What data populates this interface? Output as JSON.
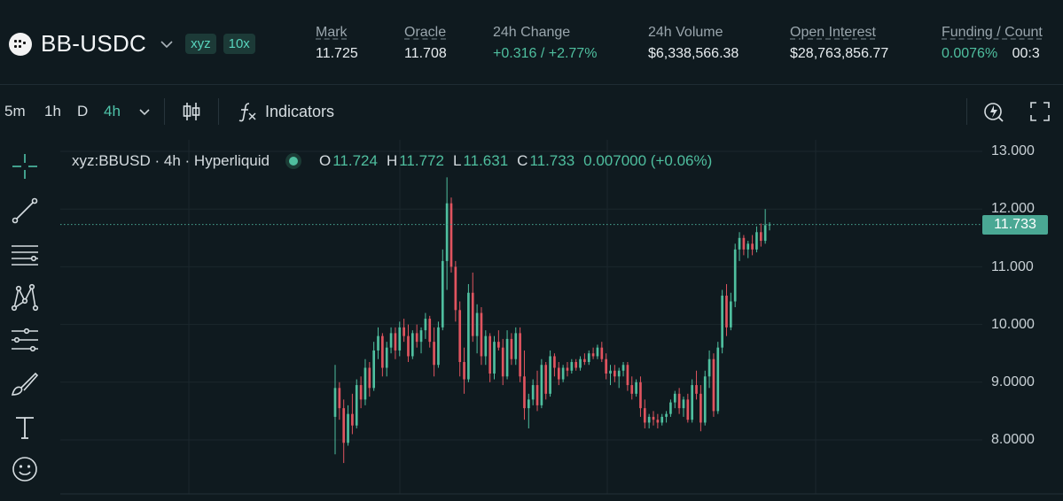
{
  "header": {
    "pair": "BB-USDC",
    "badges": [
      "xyz",
      "10x"
    ],
    "stats": [
      {
        "label": "Mark",
        "value": "11.725",
        "underline": true,
        "green": false
      },
      {
        "label": "Oracle",
        "value": "11.708",
        "underline": true,
        "green": false
      },
      {
        "label": "24h Change",
        "value": "+0.316 / +2.77%",
        "underline": false,
        "green": true
      },
      {
        "label": "24h Volume",
        "value": "$6,338,566.38",
        "underline": false,
        "green": false
      },
      {
        "label": "Open Interest",
        "value": "$28,763,856.77",
        "underline": true,
        "green": false
      },
      {
        "label": "Funding / Count",
        "value": "0.0076%",
        "value2": "00:3",
        "underline": true,
        "green": true
      }
    ]
  },
  "toolbar": {
    "timeframes": [
      "5m",
      "1h",
      "D",
      "4h"
    ],
    "active_timeframe": "4h",
    "indicators_label": "Indicators"
  },
  "chart": {
    "legend": {
      "symbol": "xyz:BBUSD · 4h · Hyperliquid",
      "o_label": "O",
      "o": "11.724",
      "h_label": "H",
      "h": "11.772",
      "l_label": "L",
      "l": "11.631",
      "c_label": "C",
      "c": "11.733",
      "change": "0.007000 (+0.06%)"
    },
    "current_price": "11.733",
    "y_axis_labels": [
      "13.000",
      "12.000",
      "11.000",
      "10.000",
      "9.0000",
      "8.0000"
    ],
    "colors": {
      "up": "#4fbf9f",
      "down": "#e0545f",
      "bg": "#0f1a1f",
      "grid": "#1b272d"
    }
  },
  "chart_data": {
    "type": "candlestick",
    "ylim": [
      7.0,
      13.3
    ],
    "y_ticks": [
      13,
      12,
      11,
      10,
      9,
      8
    ],
    "last": 11.733,
    "candles": [
      [
        8.4,
        9.3,
        7.75,
        8.9
      ],
      [
        8.9,
        9.0,
        8.35,
        8.55
      ],
      [
        8.55,
        8.7,
        7.6,
        7.95
      ],
      [
        7.95,
        8.6,
        7.9,
        8.45
      ],
      [
        8.45,
        8.8,
        8.1,
        8.25
      ],
      [
        8.25,
        9.05,
        8.2,
        8.95
      ],
      [
        8.95,
        9.1,
        8.55,
        8.7
      ],
      [
        8.7,
        9.4,
        8.6,
        9.25
      ],
      [
        9.25,
        9.35,
        8.75,
        8.9
      ],
      [
        8.9,
        9.7,
        8.85,
        9.55
      ],
      [
        9.55,
        9.95,
        9.4,
        9.8
      ],
      [
        9.8,
        9.85,
        9.1,
        9.25
      ],
      [
        9.25,
        9.7,
        9.1,
        9.6
      ],
      [
        9.6,
        9.95,
        9.5,
        9.85
      ],
      [
        9.85,
        9.95,
        9.4,
        9.55
      ],
      [
        9.55,
        10.05,
        9.45,
        9.95
      ],
      [
        9.95,
        10.1,
        9.7,
        9.8
      ],
      [
        9.8,
        10.0,
        9.35,
        9.45
      ],
      [
        9.45,
        9.9,
        9.4,
        9.85
      ],
      [
        9.85,
        10.0,
        9.6,
        9.7
      ],
      [
        9.7,
        9.95,
        9.5,
        9.9
      ],
      [
        9.9,
        10.2,
        9.75,
        10.1
      ],
      [
        10.1,
        10.15,
        9.6,
        9.7
      ],
      [
        9.7,
        9.95,
        9.1,
        9.3
      ],
      [
        9.3,
        10.05,
        9.25,
        9.95
      ],
      [
        9.95,
        11.3,
        9.9,
        11.1
      ],
      [
        11.1,
        12.55,
        10.6,
        12.1
      ],
      [
        12.1,
        12.2,
        10.9,
        11.0
      ],
      [
        11.0,
        11.1,
        10.05,
        10.25
      ],
      [
        10.25,
        10.4,
        9.1,
        9.35
      ],
      [
        9.35,
        9.6,
        8.8,
        9.05
      ],
      [
        9.05,
        10.7,
        9.0,
        10.55
      ],
      [
        10.55,
        10.9,
        9.7,
        9.8
      ],
      [
        9.8,
        10.35,
        9.5,
        10.2
      ],
      [
        10.2,
        10.3,
        9.3,
        9.45
      ],
      [
        9.45,
        9.9,
        9.3,
        9.8
      ],
      [
        9.8,
        9.85,
        9.0,
        9.15
      ],
      [
        9.15,
        9.8,
        9.05,
        9.7
      ],
      [
        9.7,
        9.9,
        9.55,
        9.6
      ],
      [
        9.6,
        9.75,
        8.95,
        9.1
      ],
      [
        9.1,
        9.9,
        9.05,
        9.75
      ],
      [
        9.75,
        9.85,
        9.3,
        9.4
      ],
      [
        9.4,
        9.95,
        9.3,
        9.85
      ],
      [
        9.85,
        9.95,
        9.0,
        9.1
      ],
      [
        9.1,
        9.55,
        8.35,
        8.55
      ],
      [
        8.55,
        8.8,
        8.2,
        8.7
      ],
      [
        8.7,
        9.05,
        8.6,
        8.95
      ],
      [
        8.95,
        9.2,
        8.5,
        8.6
      ],
      [
        8.6,
        9.4,
        8.55,
        9.3
      ],
      [
        9.3,
        9.35,
        8.7,
        8.8
      ],
      [
        8.8,
        9.55,
        8.75,
        9.45
      ],
      [
        9.45,
        9.5,
        9.1,
        9.25
      ],
      [
        9.25,
        9.35,
        8.95,
        9.05
      ],
      [
        9.05,
        9.3,
        9.0,
        9.25
      ],
      [
        9.25,
        9.35,
        9.1,
        9.2
      ],
      [
        9.2,
        9.4,
        9.15,
        9.35
      ],
      [
        9.35,
        9.4,
        9.2,
        9.25
      ],
      [
        9.25,
        9.45,
        9.2,
        9.4
      ],
      [
        9.4,
        9.5,
        9.3,
        9.35
      ],
      [
        9.35,
        9.55,
        9.3,
        9.5
      ],
      [
        9.5,
        9.6,
        9.4,
        9.45
      ],
      [
        9.45,
        9.65,
        9.4,
        9.6
      ],
      [
        9.6,
        9.7,
        9.35,
        9.4
      ],
      [
        9.4,
        9.5,
        9.05,
        9.15
      ],
      [
        9.15,
        9.3,
        8.95,
        9.2
      ],
      [
        9.2,
        9.3,
        9.0,
        9.1
      ],
      [
        9.1,
        9.25,
        8.9,
        9.2
      ],
      [
        9.2,
        9.35,
        9.1,
        9.3
      ],
      [
        9.3,
        9.35,
        8.85,
        8.95
      ],
      [
        8.95,
        9.1,
        8.7,
        8.8
      ],
      [
        8.8,
        9.05,
        8.75,
        9.0
      ],
      [
        9.0,
        9.1,
        8.4,
        8.55
      ],
      [
        8.55,
        8.7,
        8.2,
        8.3
      ],
      [
        8.3,
        8.45,
        8.2,
        8.4
      ],
      [
        8.4,
        8.5,
        8.25,
        8.35
      ],
      [
        8.35,
        8.45,
        8.2,
        8.3
      ],
      [
        8.3,
        8.45,
        8.25,
        8.4
      ],
      [
        8.4,
        8.5,
        8.3,
        8.45
      ],
      [
        8.45,
        8.7,
        8.4,
        8.65
      ],
      [
        8.65,
        8.85,
        8.55,
        8.8
      ],
      [
        8.8,
        8.9,
        8.45,
        8.55
      ],
      [
        8.55,
        8.75,
        8.4,
        8.7
      ],
      [
        8.7,
        8.8,
        8.3,
        8.35
      ],
      [
        8.35,
        9.05,
        8.3,
        8.95
      ],
      [
        8.95,
        9.2,
        8.7,
        8.8
      ],
      [
        8.8,
        8.95,
        8.15,
        8.3
      ],
      [
        8.3,
        9.2,
        8.25,
        9.1
      ],
      [
        9.1,
        9.55,
        8.9,
        9.4
      ],
      [
        9.4,
        9.5,
        8.4,
        8.5
      ],
      [
        8.5,
        9.7,
        8.45,
        9.6
      ],
      [
        9.6,
        10.6,
        9.5,
        10.5
      ],
      [
        10.5,
        10.7,
        9.8,
        9.95
      ],
      [
        9.95,
        10.55,
        9.9,
        10.4
      ],
      [
        10.4,
        11.4,
        10.3,
        11.3
      ],
      [
        11.3,
        11.6,
        11.1,
        11.5
      ],
      [
        11.5,
        11.55,
        11.2,
        11.3
      ],
      [
        11.3,
        11.45,
        11.15,
        11.4
      ],
      [
        11.4,
        11.55,
        11.2,
        11.3
      ],
      [
        11.3,
        11.7,
        11.25,
        11.6
      ],
      [
        11.6,
        11.75,
        11.35,
        11.45
      ],
      [
        11.45,
        12.0,
        11.4,
        11.72
      ],
      [
        11.724,
        11.772,
        11.631,
        11.733
      ]
    ]
  }
}
